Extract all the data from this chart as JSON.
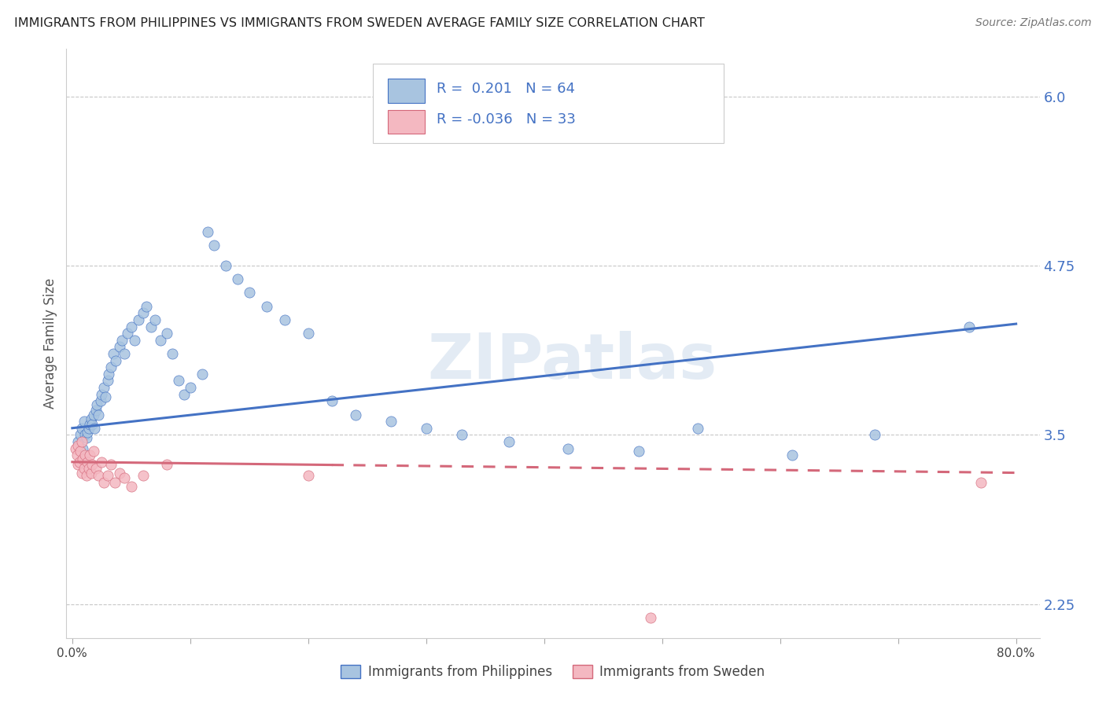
{
  "title": "IMMIGRANTS FROM PHILIPPINES VS IMMIGRANTS FROM SWEDEN AVERAGE FAMILY SIZE CORRELATION CHART",
  "source": "Source: ZipAtlas.com",
  "ylabel": "Average Family Size",
  "xlim_left": -0.005,
  "xlim_right": 0.82,
  "ylim": [
    2.0,
    6.35
  ],
  "yticks_right": [
    2.25,
    3.5,
    4.75,
    6.0
  ],
  "watermark": "ZIPatlas",
  "legend_entries": [
    "Immigrants from Philippines",
    "Immigrants from Sweden"
  ],
  "philippines_color": "#a8c4e0",
  "sweden_color": "#f4b8c1",
  "philippines_line_color": "#4472c4",
  "sweden_line_color": "#d4687a",
  "R_philippines": "0.201",
  "N_philippines": "64",
  "R_sweden": "-0.036",
  "N_sweden": "33",
  "background_color": "#ffffff",
  "grid_color": "#c8c8c8",
  "phil_x": [
    0.005,
    0.007,
    0.008,
    0.009,
    0.01,
    0.011,
    0.012,
    0.013,
    0.014,
    0.015,
    0.016,
    0.017,
    0.018,
    0.019,
    0.02,
    0.021,
    0.022,
    0.024,
    0.025,
    0.027,
    0.028,
    0.03,
    0.031,
    0.033,
    0.035,
    0.037,
    0.04,
    0.042,
    0.044,
    0.047,
    0.05,
    0.053,
    0.056,
    0.06,
    0.063,
    0.067,
    0.07,
    0.075,
    0.08,
    0.085,
    0.09,
    0.095,
    0.1,
    0.11,
    0.115,
    0.12,
    0.13,
    0.14,
    0.15,
    0.165,
    0.18,
    0.2,
    0.22,
    0.24,
    0.27,
    0.3,
    0.33,
    0.37,
    0.42,
    0.48,
    0.53,
    0.61,
    0.68,
    0.76
  ],
  "phil_y": [
    3.45,
    3.5,
    3.55,
    3.4,
    3.6,
    3.5,
    3.48,
    3.52,
    3.55,
    3.58,
    3.62,
    3.58,
    3.65,
    3.55,
    3.68,
    3.72,
    3.65,
    3.75,
    3.8,
    3.85,
    3.78,
    3.9,
    3.95,
    4.0,
    4.1,
    4.05,
    4.15,
    4.2,
    4.1,
    4.25,
    4.3,
    4.2,
    4.35,
    4.4,
    4.45,
    4.3,
    4.35,
    4.2,
    4.25,
    4.1,
    3.9,
    3.8,
    3.85,
    3.95,
    5.0,
    4.9,
    4.75,
    4.65,
    4.55,
    4.45,
    4.35,
    4.25,
    3.75,
    3.65,
    3.6,
    3.55,
    3.5,
    3.45,
    3.4,
    3.38,
    3.55,
    3.35,
    3.5,
    4.3
  ],
  "swe_x": [
    0.003,
    0.004,
    0.005,
    0.005,
    0.006,
    0.007,
    0.008,
    0.008,
    0.009,
    0.01,
    0.011,
    0.012,
    0.013,
    0.014,
    0.015,
    0.016,
    0.017,
    0.018,
    0.02,
    0.022,
    0.025,
    0.027,
    0.03,
    0.033,
    0.036,
    0.04,
    0.044,
    0.05,
    0.06,
    0.08,
    0.2,
    0.77,
    0.49
  ],
  "swe_y": [
    3.4,
    3.35,
    3.42,
    3.28,
    3.3,
    3.38,
    3.22,
    3.45,
    3.32,
    3.25,
    3.35,
    3.2,
    3.3,
    3.25,
    3.35,
    3.22,
    3.28,
    3.38,
    3.25,
    3.2,
    3.3,
    3.15,
    3.2,
    3.28,
    3.15,
    3.22,
    3.18,
    3.12,
    3.2,
    3.28,
    3.2,
    3.15,
    2.15
  ],
  "phil_trend_x0": 0.0,
  "phil_trend_y0": 3.55,
  "phil_trend_x1": 0.8,
  "phil_trend_y1": 4.32,
  "swe_trend_x0": 0.0,
  "swe_trend_y0": 3.3,
  "swe_trend_x1": 0.8,
  "swe_trend_y1": 3.22
}
